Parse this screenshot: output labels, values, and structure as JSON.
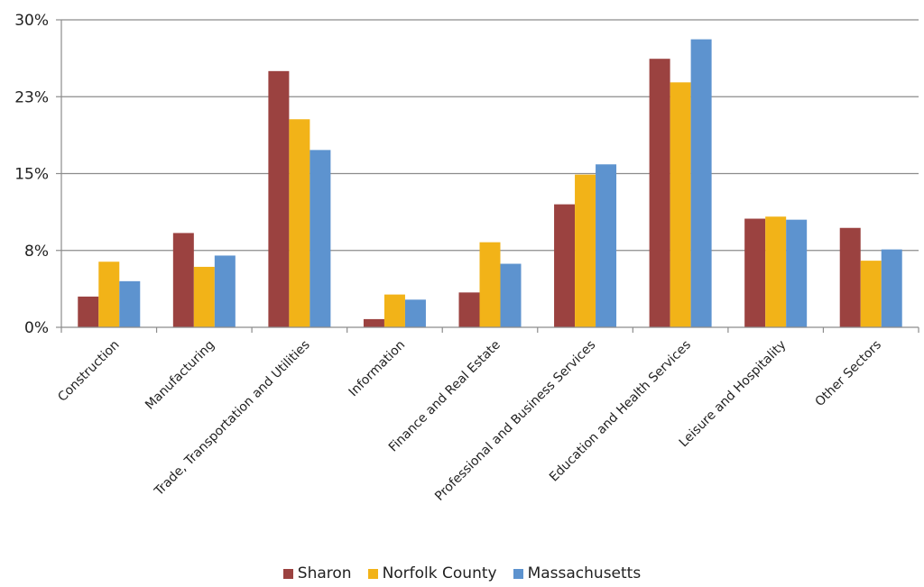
{
  "chart_data": {
    "type": "bar",
    "title": "",
    "xlabel": "",
    "ylabel": "",
    "ylim": [
      0,
      30
    ],
    "y_ticks": [
      {
        "value": 0,
        "label": "0%"
      },
      {
        "value": 7.5,
        "label": "8%"
      },
      {
        "value": 15,
        "label": "15%"
      },
      {
        "value": 22.5,
        "label": "23%"
      },
      {
        "value": 30,
        "label": "30%"
      }
    ],
    "grid": true,
    "legend_position": "bottom",
    "categories": [
      "Construction",
      "Manufacturing",
      "Trade, Transportation and Utilities",
      "Information",
      "Finance and Real Estate",
      "Professional and Business Services",
      "Education and Health Services",
      "Leisure and Hospitality",
      "Other Sectors"
    ],
    "series": [
      {
        "name": "Sharon",
        "color": "#9b4240",
        "values": [
          3.0,
          9.2,
          25.0,
          0.8,
          3.4,
          12.0,
          26.2,
          10.6,
          9.7
        ]
      },
      {
        "name": "Norfolk County",
        "color": "#f2b318",
        "values": [
          6.4,
          5.9,
          20.3,
          3.2,
          8.3,
          14.9,
          23.9,
          10.8,
          6.5
        ]
      },
      {
        "name": "Massachusetts",
        "color": "#5d93cf",
        "values": [
          4.5,
          7.0,
          17.3,
          2.7,
          6.2,
          15.9,
          28.1,
          10.5,
          7.6
        ]
      }
    ]
  }
}
